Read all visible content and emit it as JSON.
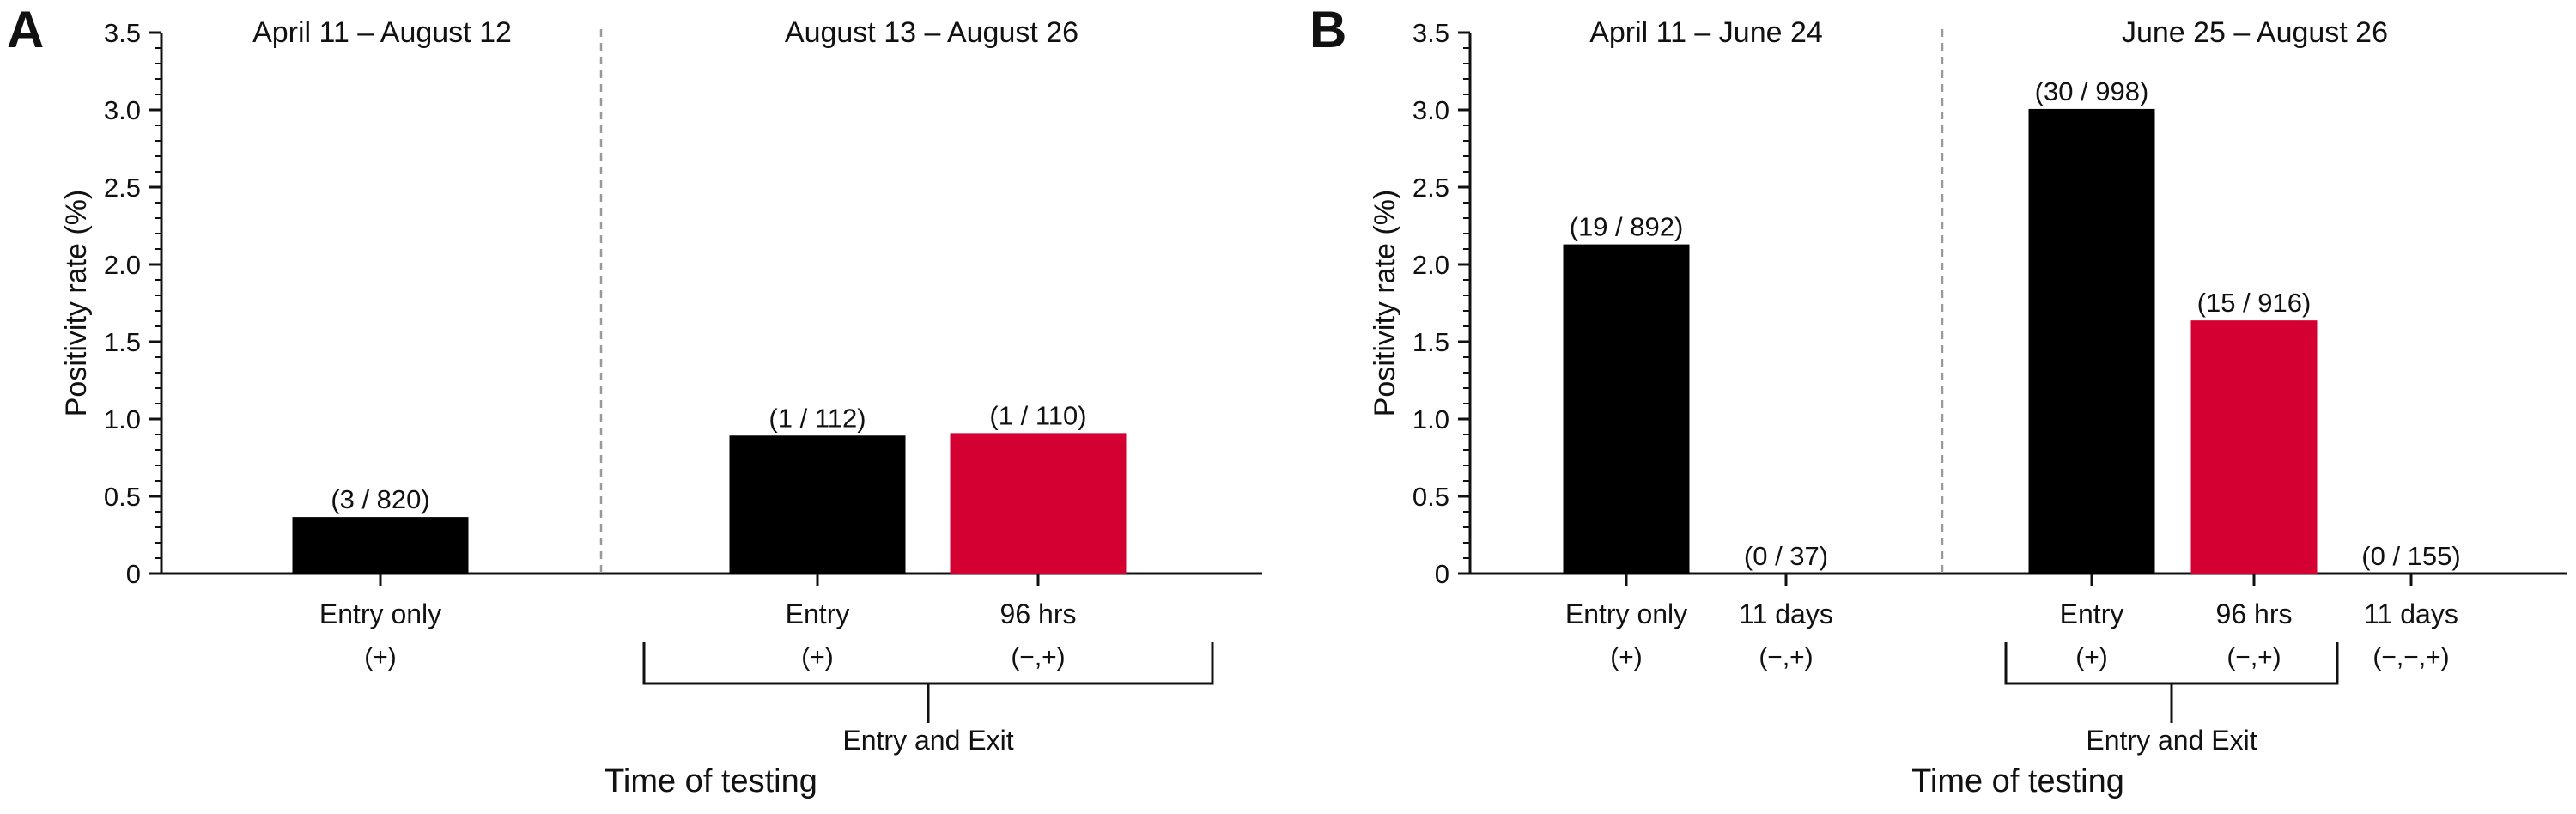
{
  "colors": {
    "entry": "#000000",
    "exit": "#d50032",
    "axis": "#111111",
    "separator": "#999999"
  },
  "chart_data": [
    {
      "panel": "A",
      "type": "bar",
      "ylabel": "Positivity rate (%)",
      "xlabel": "Time of testing",
      "ylim": [
        0,
        3.5
      ],
      "yticks": [
        "0",
        "0.5",
        "1.0",
        "1.5",
        "2.0",
        "2.5",
        "3.0",
        "3.5"
      ],
      "grid": false,
      "periods": [
        "April 11 – August 12",
        "August 13 – August 26"
      ],
      "group_label": "Entry and Exit",
      "categories": [
        {
          "label": "Entry only",
          "code": "(+)",
          "value": 0.366,
          "bar_label": "(3 / 820)",
          "color": "entry"
        },
        {
          "label": "Entry",
          "code": "(+)",
          "value": 0.893,
          "bar_label": "(1 / 112)",
          "color": "entry"
        },
        {
          "label": "96 hrs",
          "code": "(−,+)",
          "value": 0.909,
          "bar_label": "(1 / 110)",
          "color": "exit"
        }
      ]
    },
    {
      "panel": "B",
      "type": "bar",
      "ylabel": "Positivity rate (%)",
      "xlabel": "Time of testing",
      "ylim": [
        0,
        3.5
      ],
      "yticks": [
        "0",
        "0.5",
        "1.0",
        "1.5",
        "2.0",
        "2.5",
        "3.0",
        "3.5"
      ],
      "grid": false,
      "periods": [
        "April 11 – June 24",
        "June 25 – August 26"
      ],
      "group_label": "Entry and Exit",
      "categories": [
        {
          "label": "Entry only",
          "code": "(+)",
          "value": 2.13,
          "bar_label": "(19 / 892)",
          "color": "entry"
        },
        {
          "label": "11 days",
          "code": "(−,+)",
          "value": 0,
          "bar_label": "(0 / 37)",
          "color": "entry"
        },
        {
          "label": "Entry",
          "code": "(+)",
          "value": 3.006,
          "bar_label": "(30 / 998)",
          "color": "entry"
        },
        {
          "label": "96 hrs",
          "code": "(−,+)",
          "value": 1.638,
          "bar_label": "(15 / 916)",
          "color": "exit"
        },
        {
          "label": "11 days",
          "code": "(−,−,+)",
          "value": 0,
          "bar_label": "(0 / 155)",
          "color": "entry"
        }
      ]
    }
  ]
}
